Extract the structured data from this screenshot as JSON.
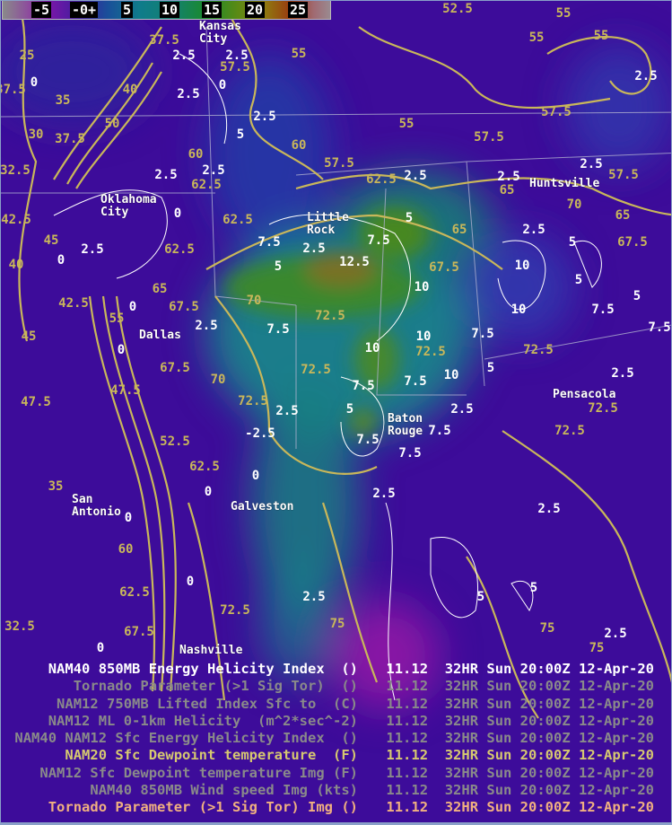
{
  "colorbar": {
    "labels": [
      "-5",
      "-0+",
      "5",
      "10",
      "15",
      "20",
      "25"
    ]
  },
  "cities": [
    {
      "name": "Kansas\nCity"
    },
    {
      "name": "Oklahoma\nCity"
    },
    {
      "name": "Little\nRock"
    },
    {
      "name": "Huntsville"
    },
    {
      "name": "Dallas"
    },
    {
      "name": "Pensacola"
    },
    {
      "name": "Baton\nRouge"
    },
    {
      "name": "San\nAntonio"
    },
    {
      "name": "Galveston"
    },
    {
      "name": "Nashville"
    }
  ],
  "dewpoint_contour_labels": [
    "52.5",
    "55",
    "55",
    "55",
    "25",
    "37.5",
    "57.5",
    "55",
    "40",
    "37.5",
    "35",
    "50",
    "30",
    "37.5",
    "55",
    "57.5",
    "60",
    "60",
    "57.5",
    "62.5",
    "62.5",
    "62.5",
    "32.5",
    "42.5",
    "45",
    "40",
    "42.5",
    "45",
    "55",
    "65",
    "62.5",
    "67.5",
    "70",
    "72.5",
    "72.5",
    "72.5",
    "67.5",
    "47.5",
    "47.5",
    "70",
    "72.5",
    "72.5",
    "72.5",
    "72.5",
    "52.5",
    "62.5",
    "35",
    "72.5",
    "75",
    "75",
    "75",
    "32.5",
    "67.5",
    "62.5",
    "60",
    "65",
    "65",
    "67.5",
    "70",
    "57.5",
    "57.5",
    "67.5",
    "65"
  ],
  "helicity_contour_labels": [
    "2.5",
    "2.5",
    "0",
    "2.5",
    "0",
    "2.5",
    "5",
    "2.5",
    "2.5",
    "0",
    "2.5",
    "0",
    "0",
    "0",
    "2.5",
    "7.5",
    "5",
    "7.5",
    "2.5",
    "7.5",
    "12.5",
    "5",
    "2.5",
    "2.5",
    "2.5",
    "2.5",
    "2.5",
    "5",
    "10",
    "10",
    "5",
    "7.5",
    "5",
    "7.5",
    "10",
    "10",
    "7.5",
    "10",
    "5",
    "10",
    "7.5",
    "5",
    "7.5",
    "2.5",
    "7.5",
    "7.5",
    "7.5",
    "2.5",
    "-2.5",
    "0",
    "0",
    "0",
    "0",
    "0",
    "2.5",
    "2.5",
    "5",
    "5",
    "2.5",
    "2.5",
    "2.5"
  ],
  "legend": [
    {
      "name": "NAM40 850MB Energy Helicity Index  ()",
      "time": "11.12  32HR Sun 20:00Z 12-Apr-20",
      "color": "#ffffff"
    },
    {
      "name": "Tornado Parameter (>1 Sig Tor)  ()",
      "time": "11.12  32HR Sun 20:00Z 12-Apr-20",
      "color": "#8a8a8a"
    },
    {
      "name": "NAM12 750MB Lifted Index Sfc to  (C)",
      "time": "11.12  32HR Sun 20:00Z 12-Apr-20",
      "color": "#8a8a8a"
    },
    {
      "name": "NAM12 ML 0-1km Helicity  (m^2*sec^-2)",
      "time": "11.12  32HR Sun 20:00Z 12-Apr-20",
      "color": "#8a8a8a"
    },
    {
      "name": "NAM40 NAM12 Sfc Energy Helicity Index  ()",
      "time": "11.12  32HR Sun 20:00Z 12-Apr-20",
      "color": "#8a8a8a"
    },
    {
      "name": "NAM20 Sfc Dewpoint temperature  (F)",
      "time": "11.12  32HR Sun 20:00Z 12-Apr-20",
      "color": "#d6c870"
    },
    {
      "name": "NAM12 Sfc Dewpoint temperature Img (F)",
      "time": "11.12  32HR Sun 20:00Z 12-Apr-20",
      "color": "#8a8a8a"
    },
    {
      "name": "NAM40 850MB Wind speed Img (kts)",
      "time": "11.12  32HR Sun 20:00Z 12-Apr-20",
      "color": "#8a8a8a"
    },
    {
      "name": "Tornado Parameter (>1 Sig Tor) Img ()",
      "time": "11.12  32HR Sun 20:00Z 12-Apr-20",
      "color": "#f0b080"
    }
  ],
  "colors": {
    "background": "#3d0c9a",
    "dewpoint_contour": "#c9b75a",
    "helicity_contour": "#ffffff",
    "boundaries": "#b0b0d0"
  }
}
